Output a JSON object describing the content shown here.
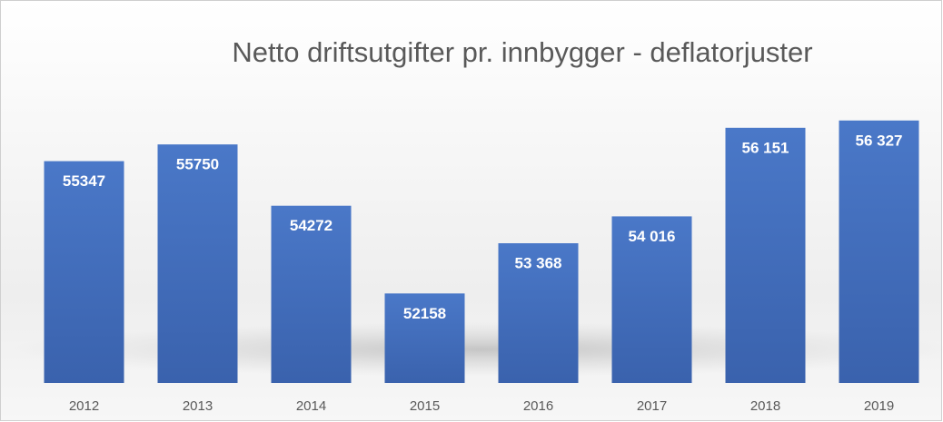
{
  "chart_data": {
    "type": "bar",
    "title": "Netto driftsutgifter pr. innbygger - deflatorjuster",
    "categories": [
      "2012",
      "2013",
      "2014",
      "2015",
      "2016",
      "2017",
      "2018",
      "2019"
    ],
    "values": [
      55347,
      55750,
      54272,
      52158,
      53368,
      54016,
      56151,
      56327
    ],
    "value_labels": [
      "55347",
      "55750",
      "54272",
      "52158",
      "53 368",
      "54 016",
      "56 151",
      "56 327"
    ],
    "color": "#4472c4",
    "ylim": [
      50000,
      57000
    ]
  }
}
